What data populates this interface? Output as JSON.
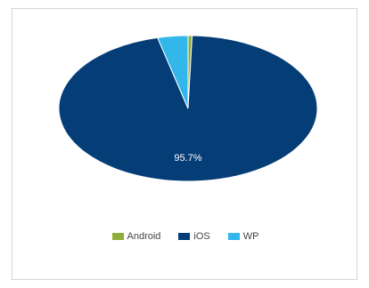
{
  "chart_data": {
    "type": "pie",
    "categories": [
      "Android",
      "iOS",
      "WP"
    ],
    "values": [
      0.5,
      95.7,
      3.8
    ],
    "colors": [
      "#8fad3a",
      "#053d77",
      "#33b6ea"
    ],
    "data_labels": [
      "",
      "95.7%",
      ""
    ],
    "legend": "bottom"
  }
}
